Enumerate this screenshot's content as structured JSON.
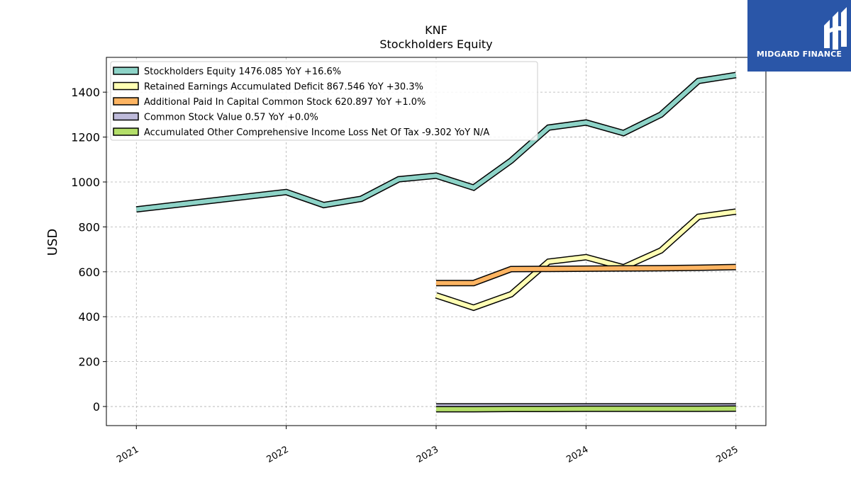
{
  "chart_data": {
    "type": "line",
    "title": "KNF",
    "subtitle": "Stockholders  Equity",
    "ylabel": "USD",
    "xlabel": "",
    "ylim": [
      -85,
      1555
    ],
    "xlim": [
      2020.8,
      2025.2
    ],
    "yticks": [
      0,
      200,
      400,
      600,
      800,
      1000,
      1200,
      1400
    ],
    "xticks": [
      "2021",
      "2022",
      "2023",
      "2024",
      "2025"
    ],
    "grid": true,
    "legend_position": "top-left",
    "series": [
      {
        "name": "Stockholders Equity  1476.085 YoY +16.6%",
        "color": "#8dd3c7",
        "points": [
          [
            2021.0,
            878
          ],
          [
            2022.0,
            955
          ],
          [
            2022.25,
            897
          ],
          [
            2022.5,
            925
          ],
          [
            2022.75,
            1012
          ],
          [
            2023.0,
            1028
          ],
          [
            2023.25,
            975
          ],
          [
            2023.5,
            1095
          ],
          [
            2023.75,
            1242
          ],
          [
            2024.0,
            1265
          ],
          [
            2024.25,
            1218
          ],
          [
            2024.5,
            1300
          ],
          [
            2024.75,
            1450
          ],
          [
            2025.0,
            1476
          ]
        ]
      },
      {
        "name": "Retained Earnings Accumulated Deficit  867.546 YoY +30.3%",
        "color": "#ffffb3",
        "points": [
          [
            2023.0,
            495
          ],
          [
            2023.25,
            440
          ],
          [
            2023.5,
            500
          ],
          [
            2023.75,
            645
          ],
          [
            2024.0,
            665
          ],
          [
            2024.25,
            620
          ],
          [
            2024.5,
            695
          ],
          [
            2024.75,
            845
          ],
          [
            2025.0,
            868
          ]
        ]
      },
      {
        "name": "Additional Paid In Capital Common Stock  620.897 YoY +1.0%",
        "color": "#fdb462",
        "points": [
          [
            2023.0,
            550
          ],
          [
            2023.25,
            550
          ],
          [
            2023.5,
            612
          ],
          [
            2023.75,
            613
          ],
          [
            2024.0,
            614
          ],
          [
            2024.25,
            615
          ],
          [
            2024.5,
            616
          ],
          [
            2024.75,
            618
          ],
          [
            2025.0,
            621
          ]
        ]
      },
      {
        "name": "Common Stock Value  0.57 YoY +0.0%",
        "color": "#bebada",
        "points": [
          [
            2023.0,
            0.57
          ],
          [
            2023.25,
            0.57
          ],
          [
            2023.5,
            0.57
          ],
          [
            2023.75,
            0.57
          ],
          [
            2024.0,
            0.57
          ],
          [
            2024.25,
            0.57
          ],
          [
            2024.5,
            0.57
          ],
          [
            2024.75,
            0.57
          ],
          [
            2025.0,
            0.57
          ]
        ]
      },
      {
        "name": "Accumulated Other Comprehensive Income Loss Net Of Tax  -9.302 YoY N/A",
        "color": "#b3de69",
        "points": [
          [
            2023.0,
            -12
          ],
          [
            2023.25,
            -12
          ],
          [
            2023.5,
            -11
          ],
          [
            2023.75,
            -11
          ],
          [
            2024.0,
            -10
          ],
          [
            2024.25,
            -10
          ],
          [
            2024.5,
            -10
          ],
          [
            2024.75,
            -10
          ],
          [
            2025.0,
            -9.3
          ]
        ]
      }
    ]
  },
  "logo": {
    "text": "MIDGARD FINANCE",
    "background": "#2a56a8"
  }
}
